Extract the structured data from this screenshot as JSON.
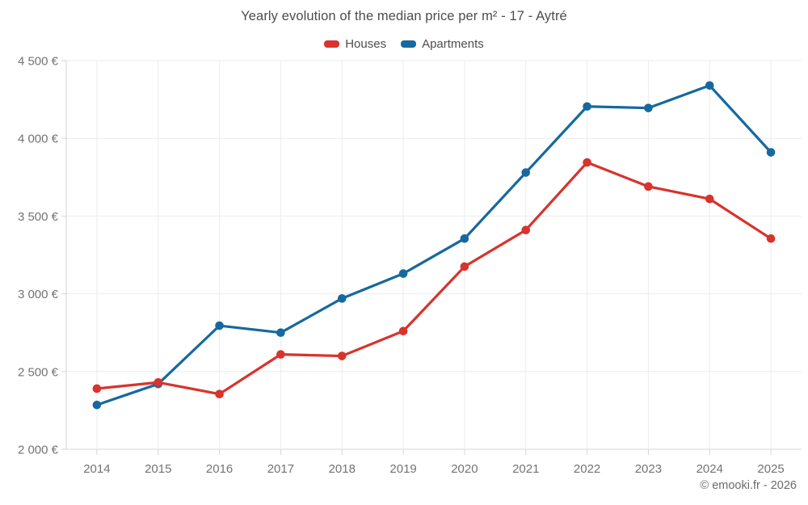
{
  "title": "Yearly evolution of the median price per m² - 17 - Aytré",
  "footer": {
    "credit": "© emooki.fr - 2026"
  },
  "colors": {
    "houses": "#d8332c",
    "apartments": "#1569a0",
    "grid": "#ececec",
    "axis": "#d6d6d6",
    "axis_text": "#737373",
    "title_text": "#4d4d4d"
  },
  "chart_data": {
    "type": "line",
    "title": "Yearly evolution of the median price per m² - 17 - Aytré",
    "xlabel": "",
    "ylabel": "",
    "categories": [
      "2014",
      "2015",
      "2016",
      "2017",
      "2018",
      "2019",
      "2020",
      "2021",
      "2022",
      "2023",
      "2024",
      "2025"
    ],
    "series": [
      {
        "name": "Houses",
        "color": "#d8332c",
        "values": [
          2390,
          2430,
          2355,
          2610,
          2600,
          2760,
          3175,
          3410,
          3845,
          3690,
          3610,
          3355
        ]
      },
      {
        "name": "Apartments",
        "color": "#1569a0",
        "values": [
          2285,
          2420,
          2795,
          2750,
          2970,
          3130,
          3355,
          3780,
          4205,
          4195,
          4340,
          3910
        ]
      }
    ],
    "ylim": [
      2000,
      4500
    ],
    "y_ticks": [
      {
        "value": 2000,
        "label": "2 000 €"
      },
      {
        "value": 2500,
        "label": "2 500 €"
      },
      {
        "value": 3000,
        "label": "3 000 €"
      },
      {
        "value": 3500,
        "label": "3 500 €"
      },
      {
        "value": 4000,
        "label": "4 000 €"
      },
      {
        "value": 4500,
        "label": "4 500 €"
      }
    ],
    "grid": true,
    "legend_position": "top",
    "annotation": "© emooki.fr - 2026"
  }
}
